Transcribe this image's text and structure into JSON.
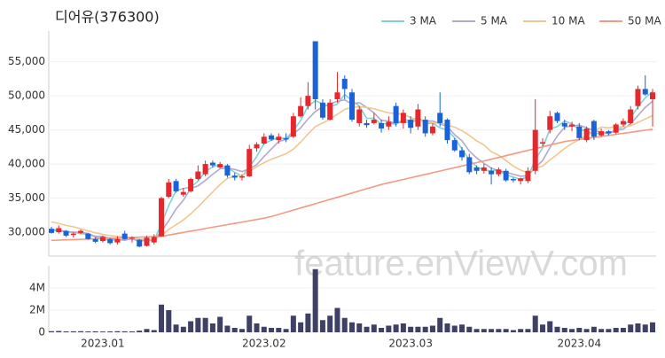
{
  "chart_data": [
    {
      "type": "candlestick",
      "title": "디어유(376300)",
      "watermark": "feature.enViewV.com",
      "categories": [
        null,
        null,
        null,
        null,
        null,
        null,
        null,
        "2023.01",
        null,
        null,
        null,
        null,
        null,
        null,
        null,
        null,
        null,
        null,
        null,
        null,
        null,
        null,
        null,
        null,
        null,
        null,
        null,
        null,
        null,
        "2023.02",
        null,
        null,
        null,
        null,
        null,
        null,
        null,
        null,
        null,
        null,
        null,
        null,
        null,
        null,
        null,
        null,
        null,
        null,
        null,
        "2023.03",
        null,
        null,
        null,
        null,
        null,
        null,
        null,
        null,
        null,
        null,
        null,
        null,
        null,
        null,
        null,
        null,
        null,
        null,
        null,
        null,
        null,
        null,
        "2023.04",
        null,
        null,
        null,
        null,
        null,
        null,
        null,
        null,
        null,
        null
      ],
      "open": [
        30500,
        30000,
        30200,
        29600,
        29900,
        29800,
        29000,
        28700,
        29000,
        28500,
        29800,
        29100,
        28900,
        28000,
        28500,
        29400,
        35200,
        37500,
        35500,
        36000,
        37800,
        38500,
        40200,
        39500,
        39800,
        38300,
        38000,
        38200,
        42300,
        43000,
        44200,
        43500,
        43800,
        44000,
        47000,
        48500,
        58000,
        49000,
        46500,
        49500,
        52500,
        50500,
        46000,
        46000,
        46000,
        46000,
        45500,
        48500,
        46000,
        46500,
        45500,
        46500,
        44500,
        47500,
        46500,
        43500,
        42000,
        41000,
        39500,
        39000,
        39000,
        38500,
        39000,
        37800,
        37500,
        37500,
        39000,
        43000,
        45000,
        47500,
        46000,
        45500,
        45500,
        43500,
        46300,
        44200,
        44800,
        44600,
        45800,
        46000,
        48500,
        51000,
        49500
      ],
      "high": [
        30800,
        31000,
        30300,
        30000,
        30400,
        29900,
        29300,
        29500,
        29200,
        29400,
        30200,
        29400,
        29000,
        29500,
        29700,
        35200,
        37800,
        37800,
        36500,
        38000,
        39800,
        40500,
        40500,
        40300,
        40000,
        38700,
        38500,
        42800,
        43200,
        44500,
        44500,
        44500,
        44500,
        47500,
        49800,
        52000,
        58000,
        49500,
        49500,
        53500,
        53000,
        51000,
        48500,
        46500,
        47500,
        46500,
        47000,
        49000,
        48000,
        47000,
        48800,
        47000,
        46000,
        50500,
        46700,
        43800,
        42500,
        41500,
        39800,
        40000,
        39500,
        39500,
        39300,
        38000,
        38000,
        39500,
        49500,
        43800,
        47800,
        47700,
        46500,
        46200,
        46000,
        45500,
        46500,
        45200,
        45000,
        46000,
        46700,
        48500,
        51500,
        53000,
        51000
      ],
      "low": [
        29800,
        29800,
        29300,
        29200,
        29700,
        28900,
        28400,
        28500,
        28200,
        28200,
        28900,
        28500,
        27800,
        27900,
        28200,
        29300,
        35000,
        35800,
        35200,
        35800,
        37600,
        38200,
        39500,
        39400,
        38000,
        37600,
        37600,
        38100,
        41800,
        42800,
        43400,
        43000,
        43200,
        43800,
        46800,
        48000,
        48000,
        46500,
        46400,
        49000,
        49500,
        46200,
        45500,
        45300,
        45800,
        44600,
        45000,
        45500,
        45200,
        44500,
        45000,
        44000,
        44200,
        45500,
        43000,
        41800,
        40500,
        38500,
        38500,
        38600,
        37000,
        38200,
        37400,
        37300,
        37000,
        37200,
        38500,
        42600,
        44500,
        46000,
        45000,
        44800,
        43500,
        43200,
        43500,
        44000,
        44200,
        44400,
        45500,
        45800,
        48000,
        50000,
        45500
      ],
      "close": [
        29900,
        30600,
        29500,
        29800,
        30200,
        29000,
        28600,
        29300,
        28400,
        29000,
        29000,
        29200,
        27900,
        29200,
        29300,
        35000,
        37300,
        36000,
        35900,
        37800,
        38900,
        40000,
        39800,
        40000,
        38300,
        38000,
        38200,
        42200,
        42900,
        44000,
        43600,
        44000,
        43600,
        47000,
        48500,
        50000,
        49500,
        46800,
        49000,
        50500,
        51000,
        46500,
        48000,
        45700,
        46500,
        45200,
        46200,
        46000,
        47500,
        45300,
        48000,
        44500,
        45500,
        46000,
        43500,
        42000,
        41000,
        38800,
        39000,
        39500,
        38500,
        39200,
        37600,
        37600,
        37900,
        39000,
        45000,
        43200,
        47000,
        46300,
        45500,
        45800,
        43800,
        45200,
        44000,
        44800,
        44500,
        45800,
        46300,
        48000,
        51000,
        50200,
        50500
      ],
      "up_color": "#e8262b",
      "down_color": "#1a62d6",
      "series": [
        {
          "name": "3 MA",
          "color": "#7fd3d6",
          "values": [
            30200,
            30300,
            30000,
            30000,
            29800,
            29700,
            29300,
            29000,
            28800,
            28900,
            28800,
            29100,
            28700,
            28800,
            28800,
            31200,
            33900,
            36100,
            36400,
            36600,
            37500,
            38900,
            39600,
            39900,
            39400,
            38800,
            38200,
            39500,
            41100,
            43000,
            43500,
            43900,
            43700,
            44900,
            46400,
            48500,
            49300,
            48800,
            48400,
            48800,
            50200,
            49300,
            48500,
            46700,
            46700,
            45800,
            46000,
            45800,
            46600,
            46300,
            46900,
            45900,
            46000,
            45300,
            45000,
            43800,
            42200,
            40600,
            39600,
            39100,
            39000,
            39100,
            38400,
            38100,
            37700,
            38200,
            40600,
            42400,
            45100,
            45500,
            46300,
            45900,
            45000,
            44900,
            44300,
            44700,
            44400,
            45000,
            45500,
            46700,
            48400,
            49700,
            50600
          ]
        },
        {
          "name": "5 MA",
          "color": "#b3a8cf",
          "values": [
            30400,
            30300,
            30100,
            30000,
            30000,
            29800,
            29400,
            29400,
            29100,
            28900,
            28900,
            29000,
            28700,
            28900,
            28900,
            30100,
            31700,
            33400,
            34700,
            36400,
            36800,
            37600,
            38500,
            39300,
            39400,
            39200,
            38900,
            39300,
            39900,
            41100,
            42200,
            43300,
            43600,
            44400,
            45300,
            46600,
            47700,
            48400,
            48800,
            49200,
            49400,
            48800,
            49000,
            48300,
            47500,
            46400,
            46300,
            45900,
            46300,
            46000,
            46600,
            46300,
            46300,
            45900,
            45500,
            44300,
            43400,
            41900,
            40900,
            40100,
            39400,
            39000,
            38800,
            38500,
            38200,
            38300,
            39500,
            40500,
            42400,
            44100,
            45400,
            45600,
            45700,
            45300,
            44900,
            44700,
            44500,
            44900,
            45100,
            45900,
            47100,
            48300,
            49200
          ]
        },
        {
          "name": "10 MA",
          "color": "#f2c690",
          "values": [
            31500,
            31300,
            31000,
            30800,
            30500,
            30200,
            29900,
            29700,
            29500,
            29400,
            29300,
            29200,
            29000,
            29000,
            28900,
            29500,
            30400,
            31100,
            31800,
            32700,
            33700,
            34800,
            35900,
            37000,
            37900,
            38200,
            38300,
            38900,
            39600,
            40200,
            40700,
            41100,
            41500,
            42200,
            43200,
            44400,
            45500,
            46000,
            46600,
            47300,
            48000,
            48300,
            48400,
            48300,
            48100,
            47800,
            47500,
            47400,
            47300,
            46800,
            46500,
            46300,
            46000,
            46000,
            45700,
            45400,
            44900,
            44200,
            43400,
            42800,
            41800,
            41300,
            40500,
            39700,
            39100,
            38700,
            39400,
            39700,
            40600,
            41400,
            42300,
            43000,
            43600,
            44200,
            44800,
            45400,
            45300,
            45500,
            45400,
            45600,
            46100,
            46600,
            47100
          ]
        },
        {
          "name": "50 MA",
          "color": "#f29a84",
          "values": [
            28800,
            28840,
            28880,
            28920,
            28960,
            29000,
            29040,
            29080,
            29120,
            29160,
            29200,
            29240,
            29280,
            29320,
            29360,
            29400,
            29590,
            29780,
            29970,
            30160,
            30350,
            30540,
            30730,
            30920,
            31110,
            31300,
            31490,
            31680,
            31870,
            32060,
            32300,
            32610,
            32930,
            33240,
            33550,
            33870,
            34180,
            34490,
            34810,
            35120,
            35430,
            35750,
            36060,
            36370,
            36690,
            37000,
            37250,
            37490,
            37740,
            37990,
            38230,
            38480,
            38730,
            38970,
            39220,
            39470,
            39710,
            39960,
            40210,
            40450,
            40700,
            40960,
            41220,
            41480,
            41740,
            42000,
            42260,
            42520,
            42780,
            43040,
            43300,
            43450,
            43600,
            43750,
            43900,
            44050,
            44200,
            44350,
            44500,
            44650,
            44800,
            44950,
            45100
          ]
        }
      ],
      "ylim": [
        26500,
        59500
      ],
      "yticks": [
        {
          "value": 30000,
          "label": "30,000"
        },
        {
          "value": 35000,
          "label": "35,000"
        },
        {
          "value": 40000,
          "label": "40,000"
        },
        {
          "value": 45000,
          "label": "45,000"
        },
        {
          "value": 50000,
          "label": "50,000"
        },
        {
          "value": 55000,
          "label": "55,000"
        }
      ],
      "legend": "top-right"
    },
    {
      "type": "bar",
      "color": "#3f4066",
      "values": [
        100000,
        120000,
        80000,
        90000,
        100000,
        80000,
        90000,
        70000,
        80000,
        100000,
        90000,
        80000,
        150000,
        300000,
        200000,
        2500000,
        2000000,
        700000,
        500000,
        1000000,
        1300000,
        1300000,
        800000,
        1400000,
        600000,
        400000,
        300000,
        1500000,
        800000,
        500000,
        400000,
        400000,
        300000,
        1500000,
        900000,
        1700000,
        5700000,
        1100000,
        1500000,
        2200000,
        1300000,
        900000,
        800000,
        500000,
        700000,
        400000,
        600000,
        700000,
        800000,
        500000,
        500000,
        500000,
        600000,
        1300000,
        800000,
        600000,
        700000,
        500000,
        300000,
        300000,
        300000,
        300000,
        300000,
        200000,
        300000,
        300000,
        1500000,
        700000,
        1000000,
        500000,
        400000,
        300000,
        400000,
        300000,
        500000,
        300000,
        300000,
        400000,
        400000,
        700000,
        800000,
        700000,
        900000
      ],
      "ylim": [
        0,
        6000000
      ],
      "yticks": [
        0,
        {
          "value": 2000000,
          "label": "2M"
        },
        {
          "value": 4000000,
          "label": "4M"
        }
      ]
    }
  ]
}
